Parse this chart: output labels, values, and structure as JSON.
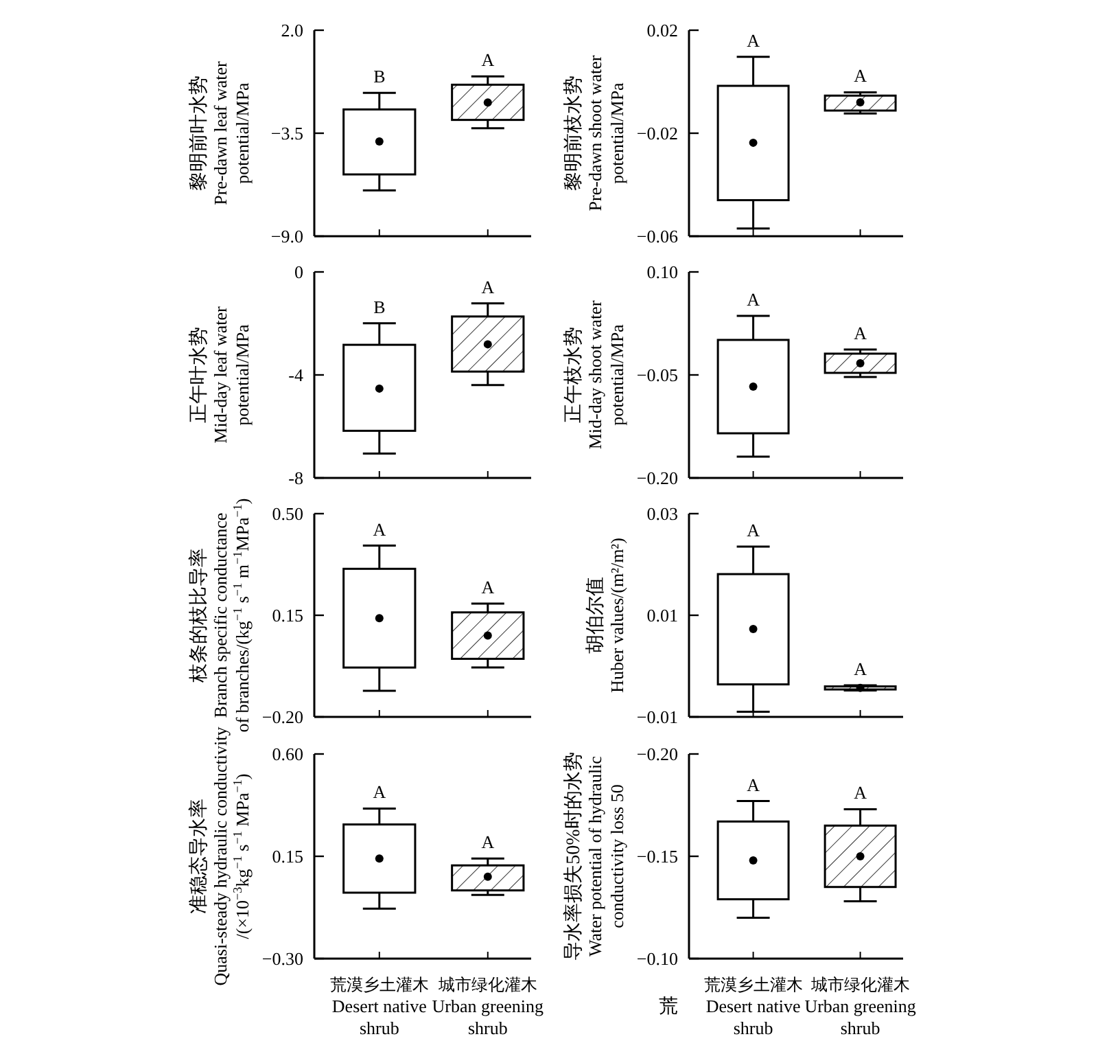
{
  "chart_data": [
    {
      "type": "box",
      "categories": [
        null,
        null
      ],
      "ylabel": "黎明前叶水势\nPre-dawn leaf water\npotential/MPa",
      "ylim": [
        -9,
        2
      ],
      "yticks": [
        {
          "value": 2,
          "label": "2.0"
        },
        {
          "value": -3.5,
          "label": "−3.5"
        },
        {
          "value": -9,
          "label": "−9.0"
        }
      ],
      "tick_labels": "y",
      "boxes": [
        {
          "low": -6.55,
          "q1": -5.7,
          "q3": -2.23,
          "high": -1.35,
          "mean": -3.94
        },
        {
          "low": -3.23,
          "q1": -2.79,
          "q3": -0.91,
          "high": -0.47,
          "mean": -1.86
        }
      ],
      "annotations": [
        "B",
        "A"
      ]
    },
    {
      "type": "box",
      "categories": [
        null,
        null
      ],
      "ylabel": "黎明前枝水势\nPre-dawn shoot water\npotential/MPa",
      "ylim": [
        -0.06,
        0.02
      ],
      "yticks": [
        {
          "value": 0.02,
          "label": "0.02"
        },
        {
          "value": -0.02,
          "label": "−0.02"
        },
        {
          "value": -0.06,
          "label": "−0.06"
        }
      ],
      "tick_labels": "y",
      "boxes": [
        {
          "low": -0.057,
          "q1": -0.046,
          "q3": -0.0016,
          "high": 0.0097,
          "mean": -0.0237
        },
        {
          "low": -0.0123,
          "q1": -0.0112,
          "q3": -0.0054,
          "high": -0.0041,
          "mean": -0.008
        }
      ],
      "annotations": [
        "A",
        "A"
      ]
    },
    {
      "type": "box",
      "categories": [
        null,
        null
      ],
      "ylabel": "正午叶水势\nMid-day leaf water\npotential/MPa",
      "ylim": [
        -8,
        0
      ],
      "yticks": [
        0,
        -4,
        -8
      ],
      "tick_labels": "y",
      "boxes": [
        {
          "low": -7.05,
          "q1": -6.17,
          "q3": -2.83,
          "high": -1.99,
          "mean": -4.53
        },
        {
          "low": -4.39,
          "q1": -3.87,
          "q3": -1.73,
          "high": -1.22,
          "mean": -2.81
        }
      ],
      "annotations": [
        "B",
        "A"
      ]
    },
    {
      "type": "box",
      "categories": [
        null,
        null
      ],
      "ylabel": "正午枝水势\nMid-day shoot water\npotential/MPa",
      "ylim": [
        -0.2,
        0.1
      ],
      "yticks": [
        {
          "value": 0.1,
          "label": "0.10"
        },
        {
          "value": -0.05,
          "label": "−0.05"
        },
        {
          "value": -0.2,
          "label": "−0.20"
        }
      ],
      "tick_labels": "y",
      "boxes": [
        {
          "low": -0.169,
          "q1": -0.135,
          "q3": 0.001,
          "high": 0.036,
          "mean": -0.067
        },
        {
          "low": -0.053,
          "q1": -0.047,
          "q3": -0.019,
          "high": -0.013,
          "mean": -0.033
        }
      ],
      "annotations": [
        "A",
        "A"
      ]
    },
    {
      "type": "box",
      "categories": [
        null,
        null
      ],
      "ylabel": "枝条的枝比导率\nBranch specific conductance\nof branches/(kg$^{−1}$ s$^{−1}$ m$^{−1}$MPa$^{−1}$)",
      "ylim": [
        -0.2,
        0.5
      ],
      "yticks": [
        {
          "value": 0.5,
          "label": "0.50"
        },
        {
          "value": 0.15,
          "label": "0.15"
        },
        {
          "value": -0.2,
          "label": "−0.20"
        }
      ],
      "tick_labels": "y",
      "boxes": [
        {
          "low": -0.11,
          "q1": -0.03,
          "q3": 0.31,
          "high": 0.39,
          "mean": 0.14
        },
        {
          "low": -0.03,
          "q1": 0.0,
          "q3": 0.16,
          "high": 0.19,
          "mean": 0.08
        }
      ],
      "annotations": [
        "A",
        "A"
      ]
    },
    {
      "type": "box",
      "categories": [
        null,
        null
      ],
      "ylabel": "胡伯尔值\nHuber values/(m²/m²)",
      "ylim": [
        -0.01,
        0.03
      ],
      "yticks": [
        {
          "value": 0.03,
          "label": "0.03"
        },
        {
          "value": 0.01,
          "label": "0.01"
        },
        {
          "value": -0.01,
          "label": "−0.01"
        }
      ],
      "tick_labels": "y",
      "boxes": [
        {
          "low": -0.009,
          "q1": -0.0036,
          "q3": 0.0181,
          "high": 0.0235,
          "mean": 0.0073
        },
        {
          "low": -0.0048,
          "q1": -0.0046,
          "q3": -0.004,
          "high": -0.0038,
          "mean": -0.0043
        }
      ],
      "annotations": [
        "A",
        "A"
      ]
    },
    {
      "type": "box",
      "categories": [
        "荒漠乡土灌木\nDesert native\nshrub",
        "城市绿化灌木\nUrban greening\nshrub"
      ],
      "ylabel": "准稳态导水率\nQuasi-steady hydraulic conductivity\n/(×10$^{−3}$kg$^{−1}$ s$^{−1}$ MPa$^{−1}$)",
      "ylim": [
        -0.3,
        0.6
      ],
      "yticks": [
        {
          "value": 0.6,
          "label": "0.60"
        },
        {
          "value": 0.15,
          "label": "0.15"
        },
        {
          "value": -0.3,
          "label": "−0.30"
        }
      ],
      "boxes": [
        {
          "low": -0.08,
          "q1": -0.01,
          "q3": 0.29,
          "high": 0.36,
          "mean": 0.14
        },
        {
          "low": -0.02,
          "q1": 0.0,
          "q3": 0.11,
          "high": 0.14,
          "mean": 0.06
        }
      ],
      "annotations": [
        "A",
        "A"
      ]
    },
    {
      "type": "box",
      "categories": [
        "荒漠乡土灌木\nDesert native\nshrub",
        "城市绿化灌木\nUrban greening\nshrub"
      ],
      "ylabel": "导水率损失50%时的水势\nWater potential of hydraulic\nconductivity loss 50",
      "ylim": [
        -0.1,
        -0.2
      ],
      "yticks": [
        {
          "value": -0.2,
          "label": "−0.20"
        },
        {
          "value": -0.15,
          "label": "−0.15"
        },
        {
          "value": -0.1,
          "label": "−0.10"
        }
      ],
      "boxes": [
        {
          "low": -0.177,
          "q1": -0.167,
          "q3": -0.129,
          "high": -0.12,
          "mean": -0.148
        },
        {
          "low": -0.173,
          "q1": -0.165,
          "q3": -0.135,
          "high": -0.128,
          "mean": -0.15
        }
      ],
      "annotations": [
        "A",
        "A",
        "荒"
      ]
    }
  ]
}
